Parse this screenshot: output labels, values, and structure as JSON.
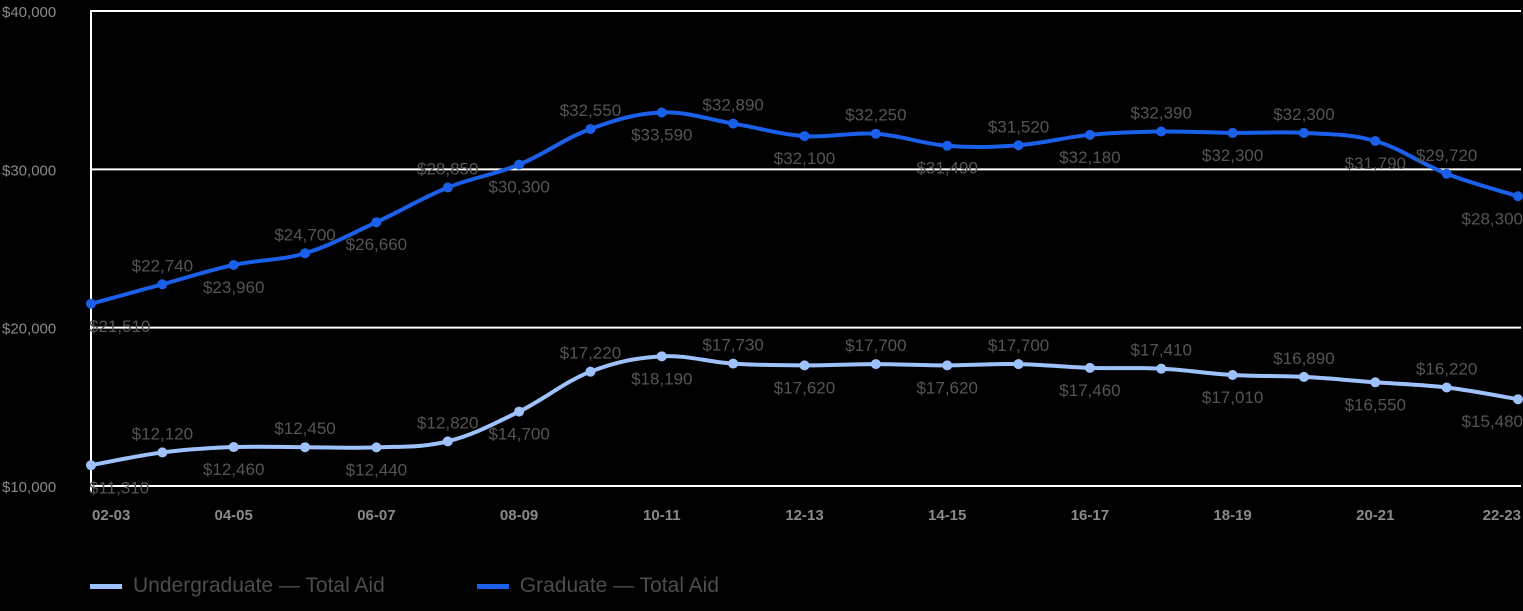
{
  "chart_data": {
    "type": "line",
    "title": "",
    "xlabel": "",
    "ylabel": "",
    "ylim": [
      10000,
      40000
    ],
    "yticks": [
      10000,
      20000,
      30000,
      40000
    ],
    "ytick_labels": [
      "$10,000",
      "$20,000",
      "$30,000",
      "$40,000"
    ],
    "grid": true,
    "legend_position": "bottom-left",
    "x": [
      "02-03",
      "03-04",
      "04-05",
      "05-06",
      "06-07",
      "07-08",
      "08-09",
      "09-10",
      "10-11",
      "11-12",
      "12-13",
      "13-14",
      "14-15",
      "15-16",
      "16-17",
      "17-18",
      "18-19",
      "19-20",
      "20-21",
      "21-22",
      "22-23"
    ],
    "xtick_labels_shown": [
      "02-03",
      "04-05",
      "06-07",
      "08-09",
      "10-11",
      "12-13",
      "14-15",
      "16-17",
      "18-19",
      "20-21",
      "22-23"
    ],
    "series": [
      {
        "name": "Undergraduate — Total Aid",
        "color": "#9ec2ff",
        "values": [
          11310,
          12120,
          12460,
          12450,
          12440,
          12820,
          14700,
          17220,
          18190,
          17730,
          17620,
          17700,
          17620,
          17700,
          17460,
          17410,
          17010,
          16890,
          16550,
          16220,
          15480
        ],
        "labels": [
          "$11,310",
          "$12,120",
          "$12,460",
          "$12,450",
          "$12,440",
          "$12,820",
          "$14,700",
          "$17,220",
          "$18,190",
          "$17,730",
          "$17,620",
          "$17,700",
          "$17,620",
          "$17,700",
          "$17,460",
          "$17,410",
          "$17,010",
          "$16,890",
          "$16,550",
          "$16,220",
          "$15,480"
        ]
      },
      {
        "name": "Graduate — Total Aid",
        "color": "#1a60ea",
        "values": [
          21510,
          22740,
          23960,
          24700,
          26660,
          28850,
          30300,
          32550,
          33590,
          32890,
          32100,
          32250,
          31490,
          31520,
          32180,
          32390,
          32300,
          32300,
          31790,
          29720,
          28300
        ],
        "labels": [
          "$21,510",
          "$22,740",
          "$23,960",
          "$24,700",
          "$26,660",
          "$28,850",
          "$30,300",
          "$32,550",
          "$33,590",
          "$32,890",
          "$32,100",
          "$32,250",
          "$31,490",
          "$31,520",
          "$32,180",
          "$32,390",
          "$32,300",
          "$32,300",
          "$31,790",
          "$29,720",
          "$28,300"
        ]
      }
    ]
  },
  "legend": {
    "items": [
      {
        "label": "Undergraduate — Total Aid",
        "color": "#9ec2ff"
      },
      {
        "label": "Graduate — Total Aid",
        "color": "#1a60ea"
      }
    ]
  }
}
